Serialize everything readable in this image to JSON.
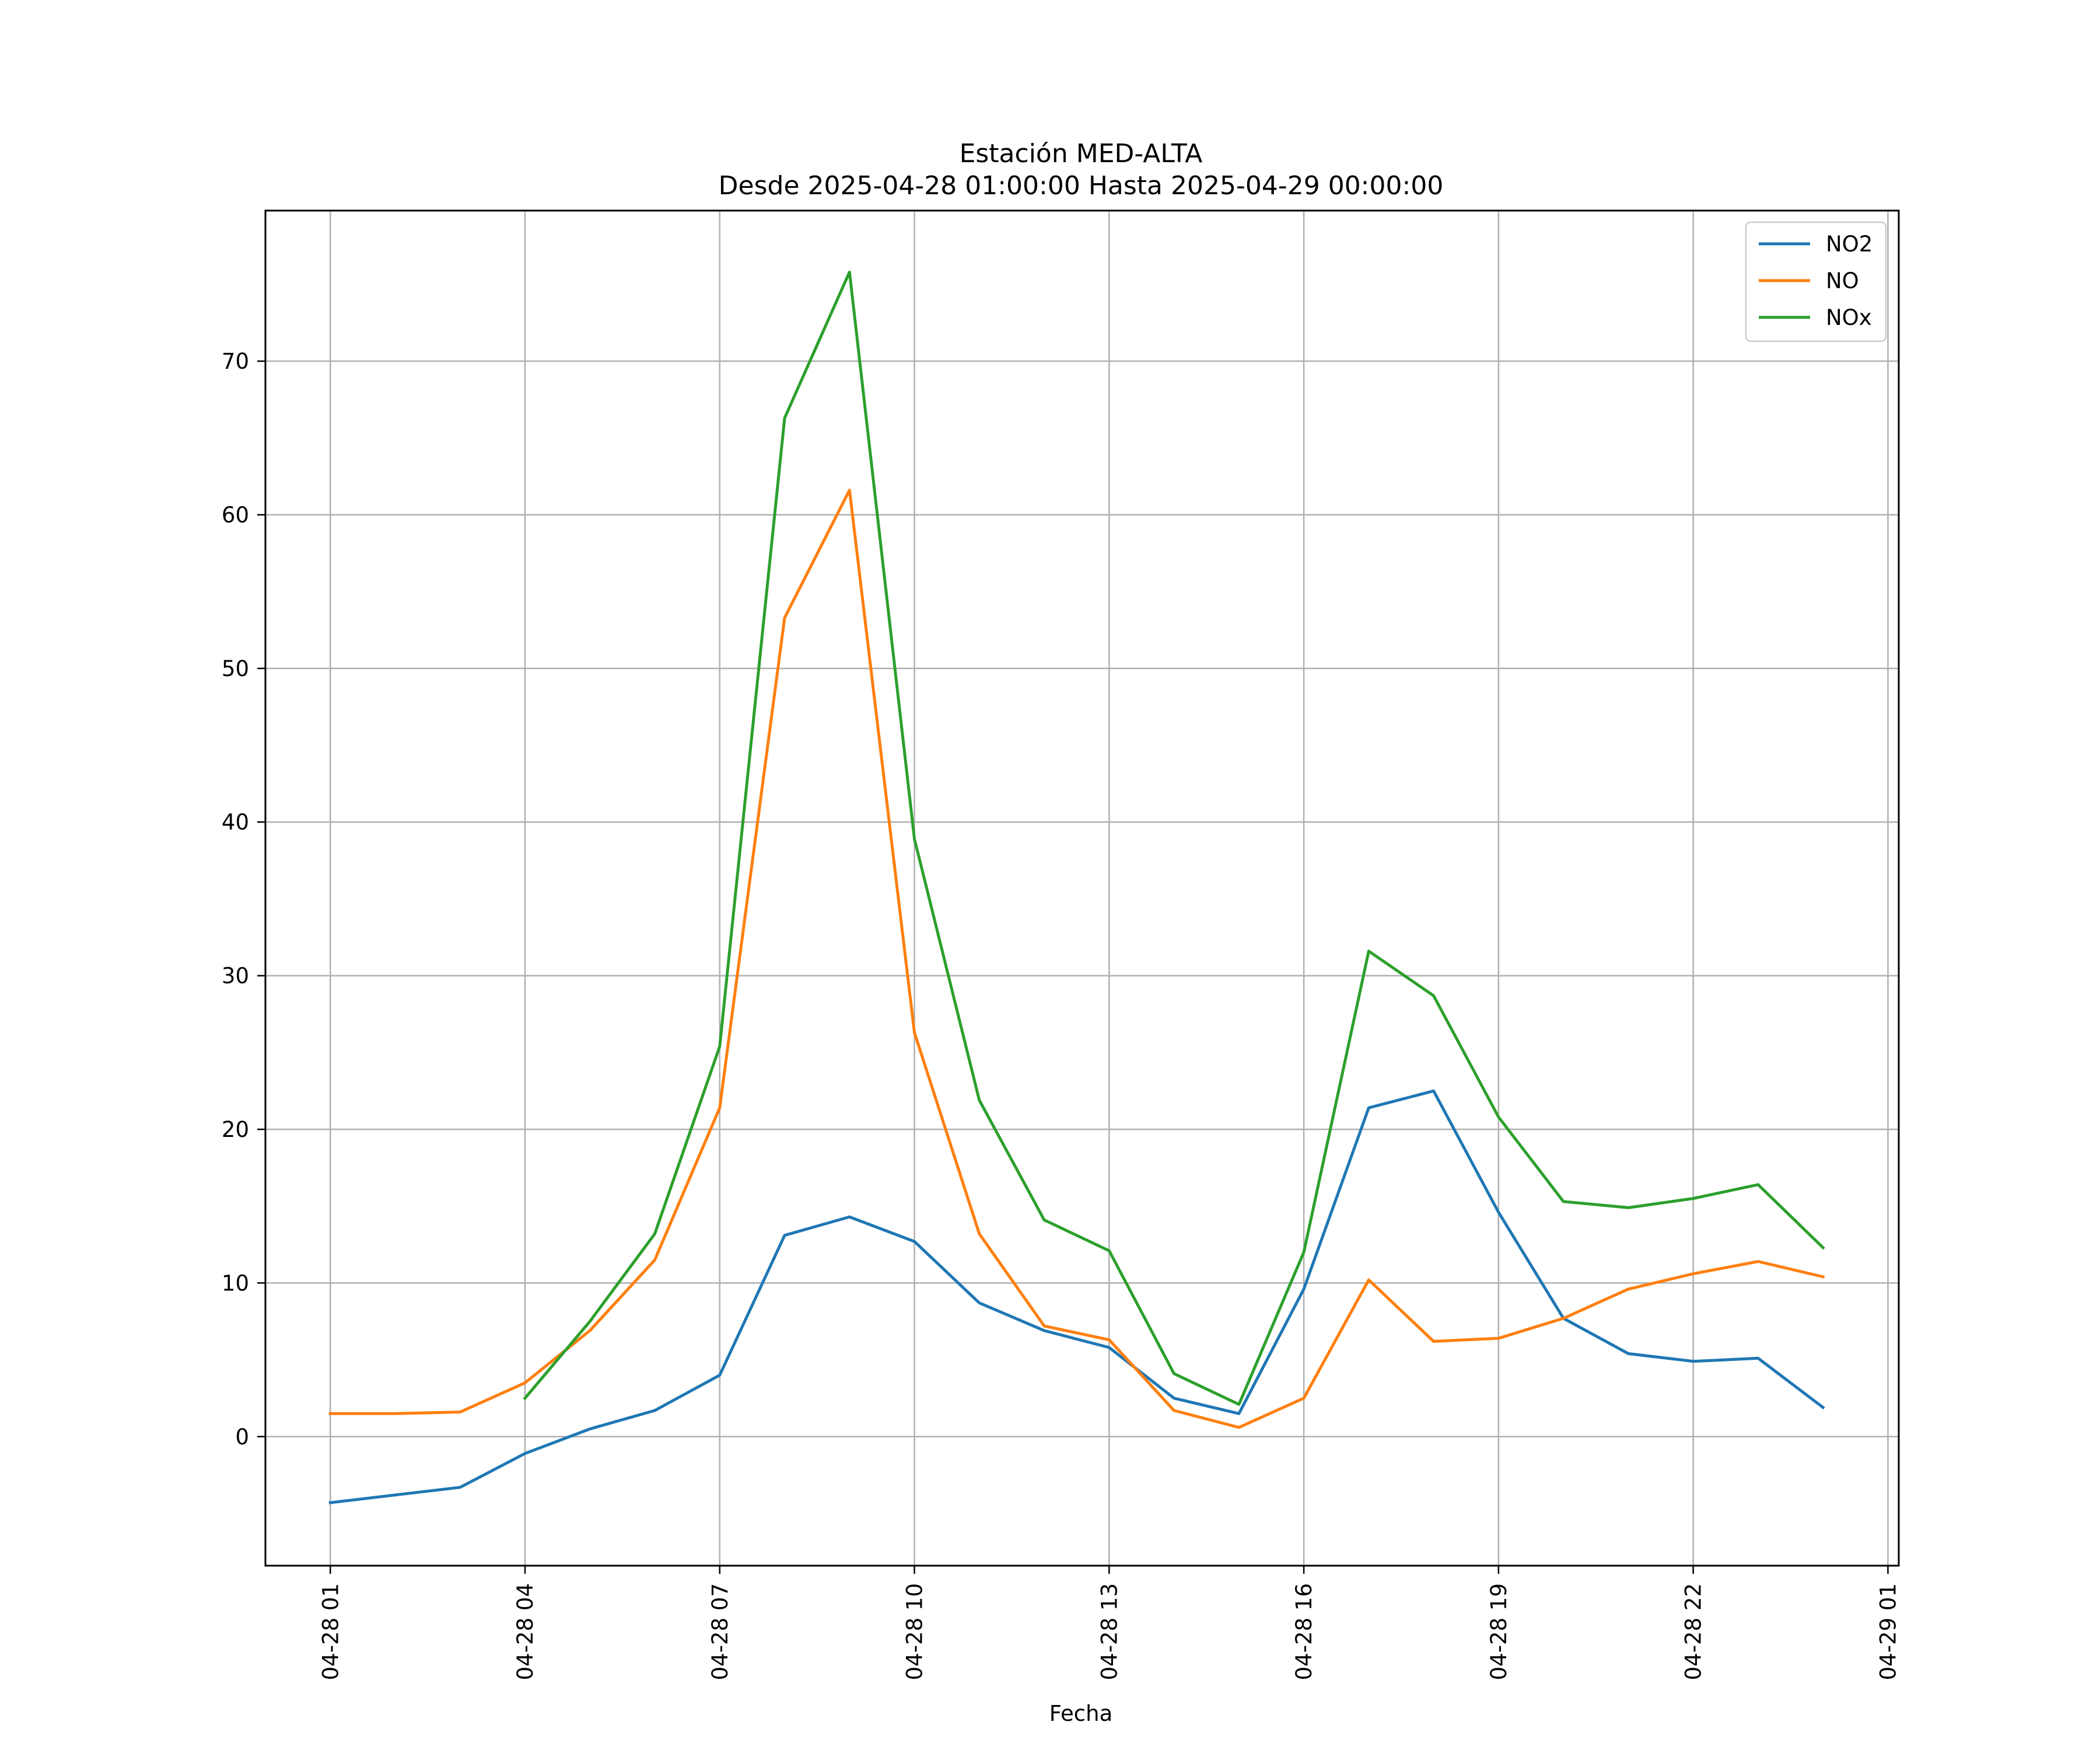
{
  "chart_data": {
    "type": "line",
    "title_line1": "Estación MED-ALTA",
    "title_line2": "Desde 2025-04-28 01:00:00 Hasta 2025-04-29 00:00:00",
    "xlabel": "Fecha",
    "ylabel": "",
    "grid": true,
    "legend_position": "top-right",
    "x": [
      "2025-04-28 01:00",
      "2025-04-28 02:00",
      "2025-04-28 03:00",
      "2025-04-28 04:00",
      "2025-04-28 05:00",
      "2025-04-28 06:00",
      "2025-04-28 07:00",
      "2025-04-28 08:00",
      "2025-04-28 09:00",
      "2025-04-28 10:00",
      "2025-04-28 11:00",
      "2025-04-28 12:00",
      "2025-04-28 13:00",
      "2025-04-28 14:00",
      "2025-04-28 15:00",
      "2025-04-28 16:00",
      "2025-04-28 17:00",
      "2025-04-28 18:00",
      "2025-04-28 19:00",
      "2025-04-28 20:00",
      "2025-04-28 21:00",
      "2025-04-28 22:00",
      "2025-04-28 23:00",
      "2025-04-29 00:00"
    ],
    "xlim": [
      "2025-04-28 00:00",
      "2025-04-29 01:10"
    ],
    "ylim": [
      -8.4,
      79.8
    ],
    "x_ticks": [
      {
        "x": "2025-04-28 01:00",
        "label": "04-28 01"
      },
      {
        "x": "2025-04-28 04:00",
        "label": "04-28 04"
      },
      {
        "x": "2025-04-28 07:00",
        "label": "04-28 07"
      },
      {
        "x": "2025-04-28 10:00",
        "label": "04-28 10"
      },
      {
        "x": "2025-04-28 13:00",
        "label": "04-28 13"
      },
      {
        "x": "2025-04-28 16:00",
        "label": "04-28 16"
      },
      {
        "x": "2025-04-28 19:00",
        "label": "04-28 19"
      },
      {
        "x": "2025-04-28 22:00",
        "label": "04-28 22"
      },
      {
        "x": "2025-04-29 01:00",
        "label": "04-29 01"
      }
    ],
    "y_ticks": [
      {
        "value": 0,
        "label": "0"
      },
      {
        "value": 10,
        "label": "10"
      },
      {
        "value": 20,
        "label": "20"
      },
      {
        "value": 30,
        "label": "30"
      },
      {
        "value": 40,
        "label": "40"
      },
      {
        "value": 50,
        "label": "50"
      },
      {
        "value": 60,
        "label": "60"
      },
      {
        "value": 70,
        "label": "70"
      }
    ],
    "series": [
      {
        "name": "NO2",
        "color": "#1f77b4",
        "values": [
          -4.3,
          -3.8,
          -3.3,
          -1.1,
          0.5,
          1.7,
          4.0,
          13.1,
          14.3,
          12.7,
          8.7,
          6.9,
          5.8,
          2.5,
          1.5,
          9.6,
          21.4,
          22.5,
          14.6,
          7.7,
          5.4,
          4.9,
          5.1,
          1.9
        ]
      },
      {
        "name": "NO",
        "color": "#ff7f0e",
        "values": [
          1.5,
          1.5,
          1.6,
          3.5,
          6.9,
          11.5,
          21.4,
          53.3,
          61.6,
          26.3,
          13.2,
          7.2,
          6.3,
          1.7,
          0.6,
          2.5,
          10.2,
          6.2,
          6.4,
          7.7,
          9.6,
          10.6,
          11.4,
          10.4
        ]
      },
      {
        "name": "NOx",
        "color": "#2ca02c",
        "values": [
          null,
          null,
          null,
          2.5,
          7.5,
          13.2,
          25.4,
          66.3,
          75.8,
          38.9,
          21.9,
          14.1,
          12.1,
          4.1,
          2.1,
          12.0,
          31.6,
          28.7,
          20.8,
          15.3,
          14.9,
          15.5,
          16.4,
          12.3
        ]
      }
    ]
  }
}
